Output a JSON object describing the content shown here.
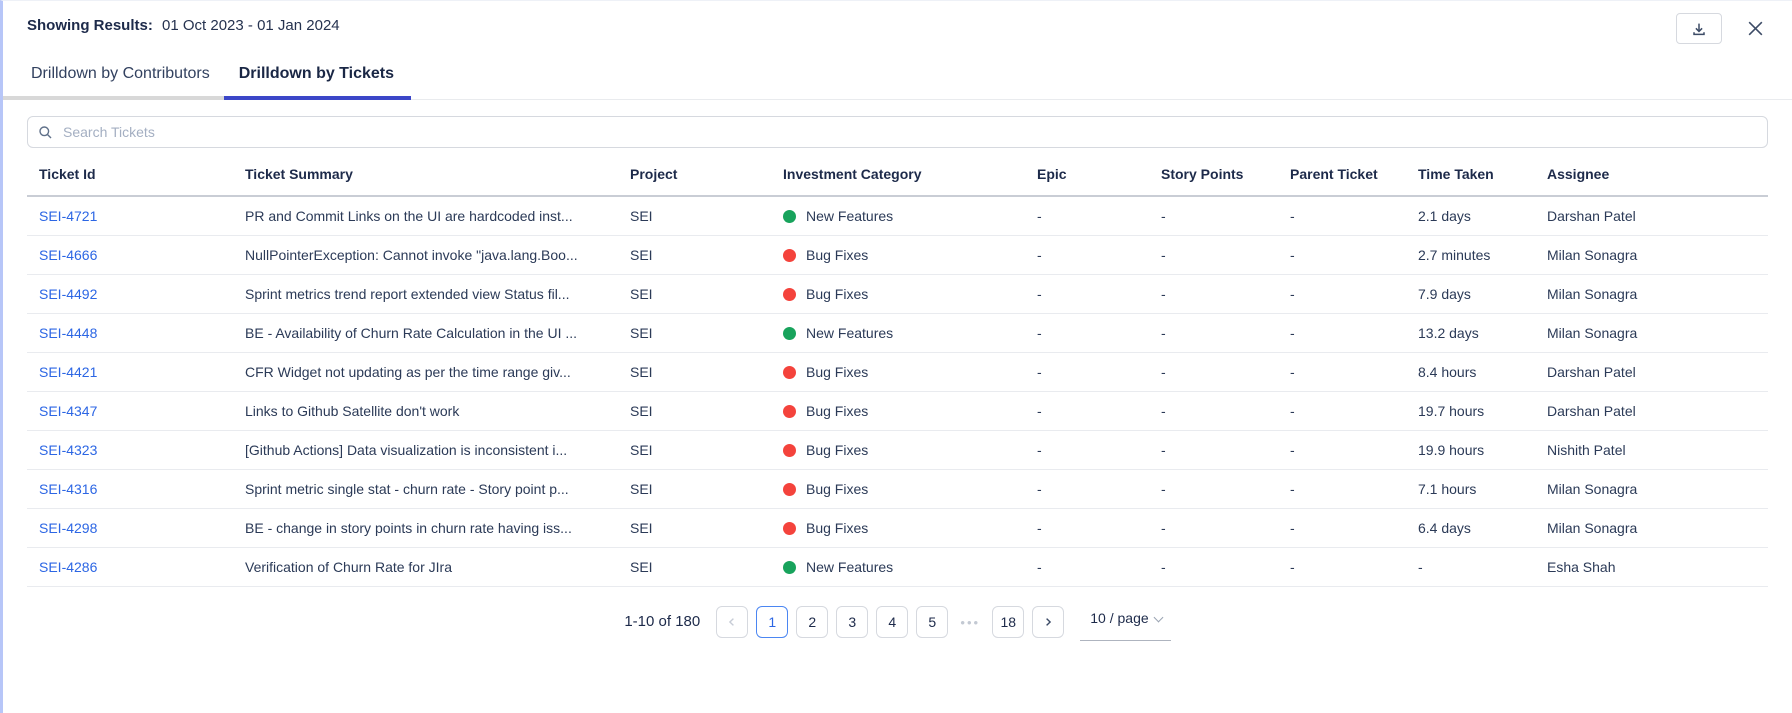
{
  "header": {
    "showing_label": "Showing Results:",
    "date_range": "01 Oct 2023 - 01 Jan 2024"
  },
  "icons": {
    "download": "download-tray-icon",
    "close": "close-x-icon",
    "search": "magnifier-icon",
    "prev": "chevron-left-icon",
    "next": "chevron-right-icon",
    "page_size": "chevron-down-icon"
  },
  "tabs": [
    {
      "label": "Drilldown by Contributors",
      "active": false
    },
    {
      "label": "Drilldown by Tickets",
      "active": true
    }
  ],
  "search": {
    "placeholder": "Search Tickets"
  },
  "table": {
    "columns": [
      "Ticket Id",
      "Ticket Summary",
      "Project",
      "Investment Category",
      "Epic",
      "Story Points",
      "Parent Ticket",
      "Time Taken",
      "Assignee"
    ],
    "rows": [
      {
        "ticket_id": "SEI-4721",
        "summary": "PR and Commit Links on the UI are hardcoded inst...",
        "project": "SEI",
        "category": "New Features",
        "category_color": "#18a35c",
        "epic": "-",
        "story_points": "-",
        "parent_ticket": "-",
        "time_taken": "2.1 days",
        "assignee": "Darshan Patel"
      },
      {
        "ticket_id": "SEI-4666",
        "summary": "NullPointerException: Cannot invoke \"java.lang.Boo...",
        "project": "SEI",
        "category": "Bug Fixes",
        "category_color": "#f4433c",
        "epic": "-",
        "story_points": "-",
        "parent_ticket": "-",
        "time_taken": "2.7 minutes",
        "assignee": "Milan Sonagra"
      },
      {
        "ticket_id": "SEI-4492",
        "summary": "Sprint metrics trend report extended view Status fil...",
        "project": "SEI",
        "category": "Bug Fixes",
        "category_color": "#f4433c",
        "epic": "-",
        "story_points": "-",
        "parent_ticket": "-",
        "time_taken": "7.9 days",
        "assignee": "Milan Sonagra"
      },
      {
        "ticket_id": "SEI-4448",
        "summary": "BE - Availability of Churn Rate Calculation in the UI ...",
        "project": "SEI",
        "category": "New Features",
        "category_color": "#18a35c",
        "epic": "-",
        "story_points": "-",
        "parent_ticket": "-",
        "time_taken": "13.2 days",
        "assignee": "Milan Sonagra"
      },
      {
        "ticket_id": "SEI-4421",
        "summary": "CFR Widget not updating as per the time range giv...",
        "project": "SEI",
        "category": "Bug Fixes",
        "category_color": "#f4433c",
        "epic": "-",
        "story_points": "-",
        "parent_ticket": "-",
        "time_taken": "8.4 hours",
        "assignee": "Darshan Patel"
      },
      {
        "ticket_id": "SEI-4347",
        "summary": "Links to Github Satellite don't work",
        "project": "SEI",
        "category": "Bug Fixes",
        "category_color": "#f4433c",
        "epic": "-",
        "story_points": "-",
        "parent_ticket": "-",
        "time_taken": "19.7 hours",
        "assignee": "Darshan Patel"
      },
      {
        "ticket_id": "SEI-4323",
        "summary": "[Github Actions] Data visualization is inconsistent i...",
        "project": "SEI",
        "category": "Bug Fixes",
        "category_color": "#f4433c",
        "epic": "-",
        "story_points": "-",
        "parent_ticket": "-",
        "time_taken": "19.9 hours",
        "assignee": "Nishith Patel"
      },
      {
        "ticket_id": "SEI-4316",
        "summary": "Sprint metric single stat - churn rate - Story point p...",
        "project": "SEI",
        "category": "Bug Fixes",
        "category_color": "#f4433c",
        "epic": "-",
        "story_points": "-",
        "parent_ticket": "-",
        "time_taken": "7.1 hours",
        "assignee": "Milan Sonagra"
      },
      {
        "ticket_id": "SEI-4298",
        "summary": "BE - change in story points in churn rate having iss...",
        "project": "SEI",
        "category": "Bug Fixes",
        "category_color": "#f4433c",
        "epic": "-",
        "story_points": "-",
        "parent_ticket": "-",
        "time_taken": "6.4 days",
        "assignee": "Milan Sonagra"
      },
      {
        "ticket_id": "SEI-4286",
        "summary": "Verification of Churn Rate for JIra",
        "project": "SEI",
        "category": "New Features",
        "category_color": "#18a35c",
        "epic": "-",
        "story_points": "-",
        "parent_ticket": "-",
        "time_taken": "-",
        "assignee": "Esha Shah"
      }
    ]
  },
  "pagination": {
    "range_text": "1-10 of 180",
    "pages": [
      {
        "label": "1",
        "active": true
      },
      {
        "label": "2",
        "active": false
      },
      {
        "label": "3",
        "active": false
      },
      {
        "label": "4",
        "active": false
      },
      {
        "label": "5",
        "active": false
      },
      {
        "label": "•••",
        "ellipsis": true
      },
      {
        "label": "18",
        "active": false
      }
    ],
    "page_size_label": "10 / page"
  },
  "colors": {
    "accent_tab_blue": "#3b46c8",
    "link_blue": "#2c66e4",
    "new_features_green": "#18a35c",
    "bug_fixes_red": "#f4433c",
    "panel_edge": "#b7c6f8"
  }
}
